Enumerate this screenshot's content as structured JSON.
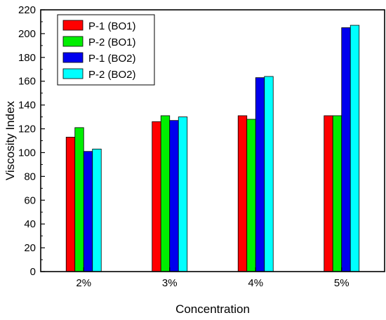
{
  "chart_data": {
    "type": "bar",
    "xlabel": "Concentration",
    "ylabel": "Viscosity Index",
    "categories": [
      "2%",
      "3%",
      "4%",
      "5%"
    ],
    "ylim": [
      0,
      220
    ],
    "yticks": [
      0,
      20,
      40,
      60,
      80,
      100,
      120,
      140,
      160,
      180,
      200,
      220
    ],
    "grid": false,
    "legend_position": "top-left",
    "series": [
      {
        "name": "P-1 (BO1)",
        "color": "#ff0000",
        "values": [
          113,
          126,
          131,
          131
        ]
      },
      {
        "name": "P-2 (BO1)",
        "color": "#00ee00",
        "values": [
          121,
          131,
          128,
          131
        ]
      },
      {
        "name": "P-1 (BO2)",
        "color": "#0000ee",
        "values": [
          101,
          127,
          163,
          205
        ]
      },
      {
        "name": "P-2 (BO2)",
        "color": "#00ffff",
        "values": [
          103,
          130,
          164,
          207
        ]
      }
    ]
  }
}
